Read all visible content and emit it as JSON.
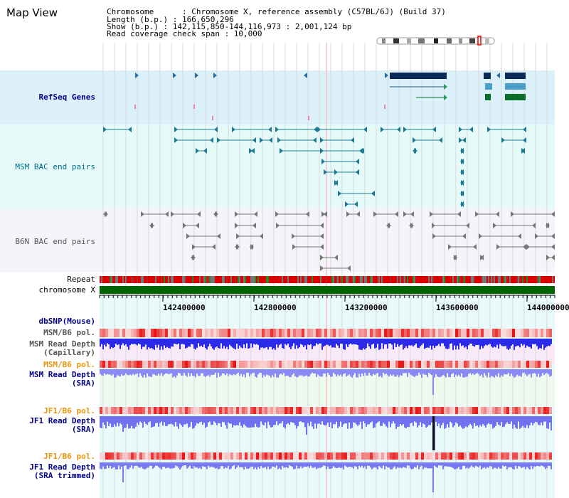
{
  "title": "Map View",
  "header": {
    "chromosome_line": "Chromosome      : Chromosome X, reference assembly (C57BL/6J) (Build 37)",
    "length_line": "Length (b.p.) : 166,650,296",
    "show_line": "Show (b.p.) : 142,115,850-144,116,973 : 2,001,124 bp",
    "coverage_line": "Read coverage check span : 10,000"
  },
  "tracks": {
    "refseq": "RefSeq Genes",
    "msm_bac": "MSM BAC end pairs",
    "b6n_bac": "B6N BAC end pairs",
    "repeat": "Repeat",
    "chromosome": "chromosome X",
    "dbsnp": "dbSNP(Mouse)",
    "msm_pol1": "MSM/B6 pol.",
    "msm_depth_cap": "MSM Read Depth\n(Capillary)",
    "msm_pol2": "MSM/B6 pol.",
    "msm_depth_sra": "MSM Read Depth\n(SRA)",
    "jf1_pol1": "JF1/B6 pol.",
    "jf1_depth_sra": "JF1 Read Depth\n(SRA)",
    "jf1_pol2": "JF1/B6 pol.",
    "jf1_depth_trim": "JF1 Read Depth\n(SRA trimmed)"
  },
  "axis_ticks": [
    "142400000",
    "142800000",
    "143200000",
    "143600000",
    "144000000"
  ],
  "colors": {
    "refseq_bg": "#dcf0fa",
    "msm_bg": "#e6fafa",
    "b6n_bg": "#f3f5fa",
    "chrom_green": "#006400",
    "depth_blue": "#2828e6",
    "depth_light": "#8c8cf5",
    "pol_red": "#e60000"
  }
}
